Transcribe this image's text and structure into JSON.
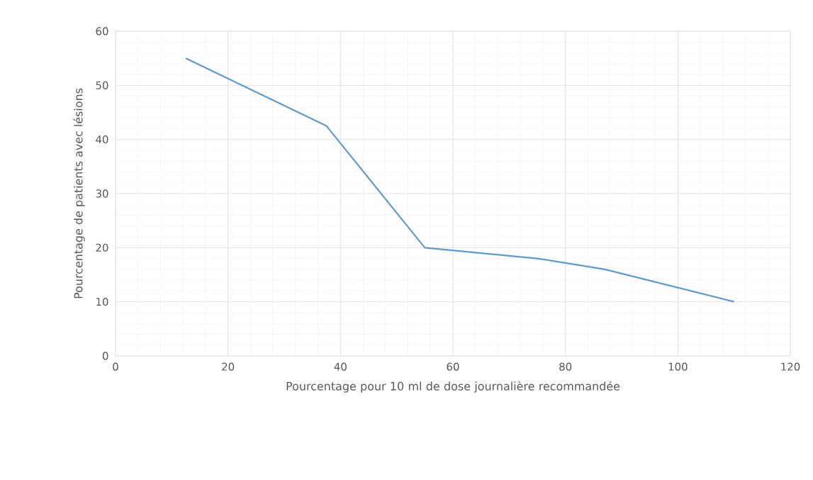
{
  "chart_data": {
    "type": "line",
    "xlabel": "Pourcentage pour 10 ml de dose journalière recommandée",
    "ylabel": "Pourcentage de patients avec lésions",
    "x": [
      12.5,
      37.5,
      55,
      75,
      87,
      110
    ],
    "series": [
      {
        "color": "#5b9bd5",
        "values": [
          55,
          42.5,
          20,
          18,
          16,
          10
        ]
      }
    ],
    "xlim": [
      0,
      120
    ],
    "xticks": [
      0,
      20,
      40,
      60,
      80,
      100,
      120
    ],
    "ylim": [
      0,
      60
    ],
    "yticks": [
      0,
      10,
      20,
      30,
      40,
      50,
      60
    ],
    "grid": true,
    "marker": "none",
    "line_style": "solid"
  }
}
